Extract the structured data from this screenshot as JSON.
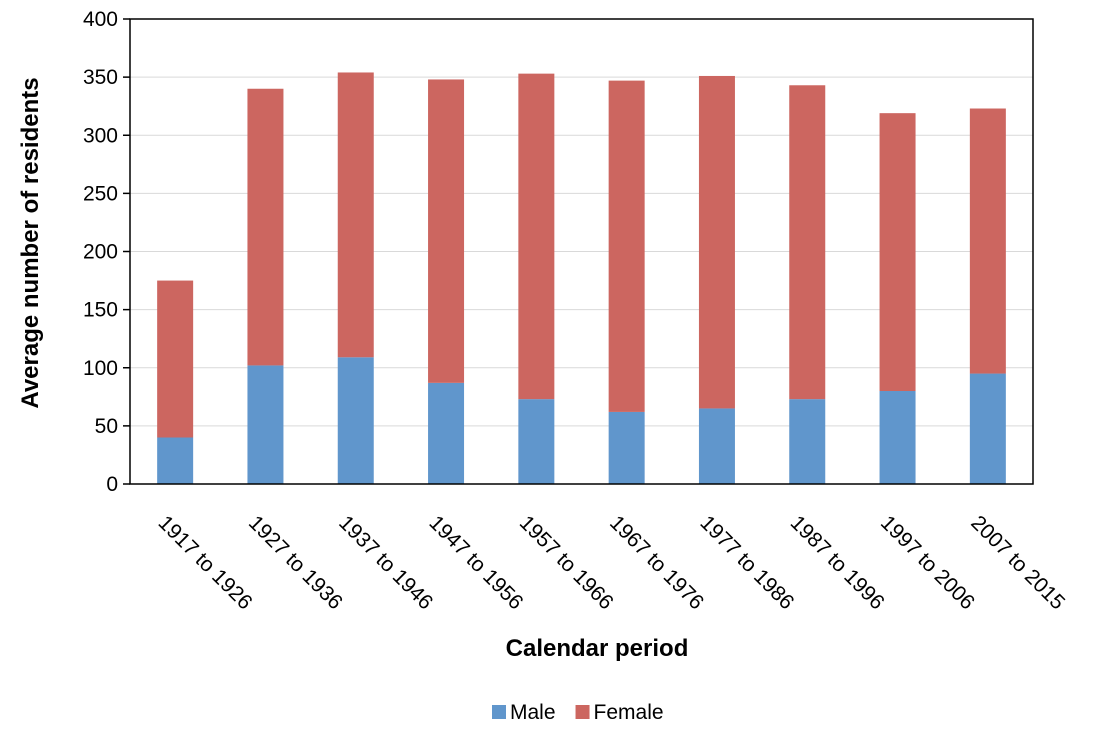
{
  "chart_data": {
    "type": "bar",
    "stacked": true,
    "title": "",
    "xlabel": "Calendar period",
    "ylabel": "Average number of residents",
    "ylim": [
      0,
      400
    ],
    "yticks": [
      0,
      50,
      100,
      150,
      200,
      250,
      300,
      350,
      400
    ],
    "grid": true,
    "legend_position": "bottom",
    "categories": [
      "1917 to 1926",
      "1927 to 1936",
      "1937 to 1946",
      "1947 to 1956",
      "1957 to 1966",
      "1967 to 1976",
      "1977 to 1986",
      "1987 to 1996",
      "1997 to 2006",
      "2007 to 2015"
    ],
    "series": [
      {
        "name": "Male",
        "color": "#6096CC",
        "values": [
          40,
          102,
          109,
          87,
          73,
          62,
          65,
          73,
          80,
          95
        ]
      },
      {
        "name": "Female",
        "color": "#CC6660",
        "values": [
          135,
          238,
          245,
          261,
          280,
          285,
          286,
          270,
          239,
          228
        ]
      }
    ]
  }
}
